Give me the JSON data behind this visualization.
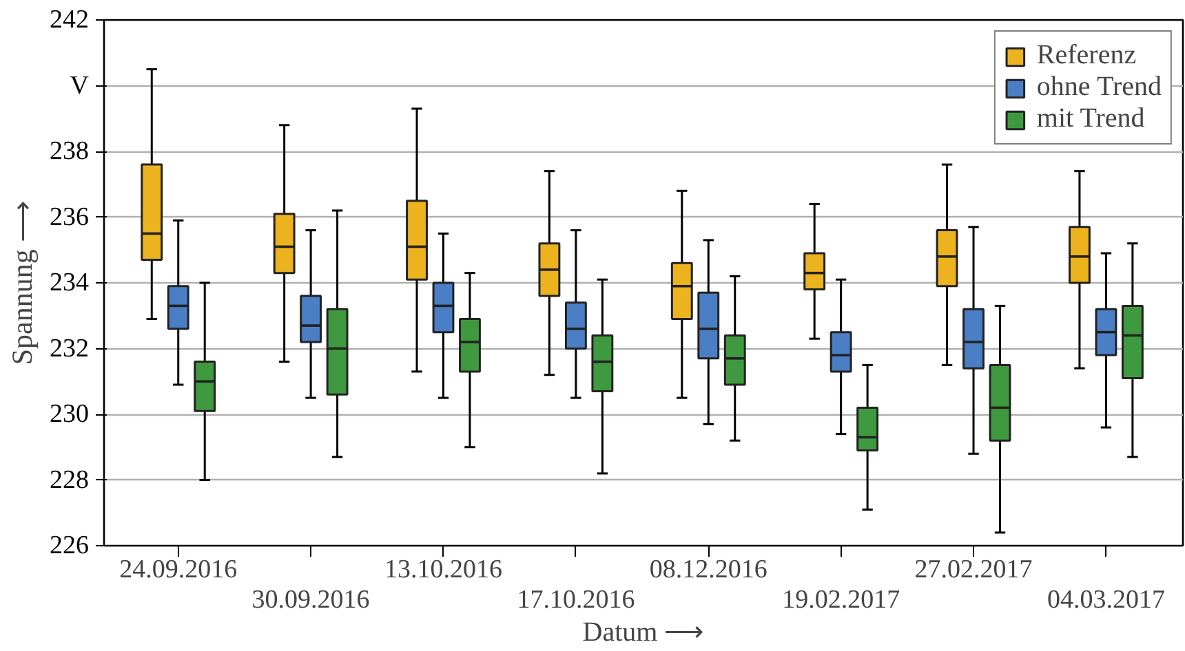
{
  "chart_data": {
    "type": "box",
    "xlabel": "Datum ⟶",
    "ylabel": "Spannung ⟶",
    "categories": [
      "24.09.2016",
      "30.09.2016",
      "13.10.2016",
      "17.10.2016",
      "08.12.2016",
      "19.02.2017",
      "27.02.2017",
      "04.03.2017"
    ],
    "ylim": [
      226,
      242
    ],
    "yticks": [
      226,
      228,
      230,
      232,
      234,
      236,
      238,
      {
        "value": 240,
        "label": "V"
      },
      242
    ],
    "grid": "y",
    "legend": "top right",
    "series": [
      {
        "name": "Referenz",
        "color": "#ecb31f",
        "boxes": [
          {
            "low": 232.9,
            "q1": 234.7,
            "median": 235.5,
            "q3": 237.6,
            "high": 240.5
          },
          {
            "low": 231.6,
            "q1": 234.3,
            "median": 235.1,
            "q3": 236.1,
            "high": 238.8
          },
          {
            "low": 231.3,
            "q1": 234.1,
            "median": 235.1,
            "q3": 236.5,
            "high": 239.3
          },
          {
            "low": 231.2,
            "q1": 233.6,
            "median": 234.4,
            "q3": 235.2,
            "high": 237.4
          },
          {
            "low": 230.5,
            "q1": 232.9,
            "median": 233.9,
            "q3": 234.6,
            "high": 236.8
          },
          {
            "low": 232.3,
            "q1": 233.8,
            "median": 234.3,
            "q3": 234.9,
            "high": 236.4
          },
          {
            "low": 231.5,
            "q1": 233.9,
            "median": 234.8,
            "q3": 235.6,
            "high": 237.6
          },
          {
            "low": 231.4,
            "q1": 234.0,
            "median": 234.8,
            "q3": 235.7,
            "high": 237.4
          }
        ]
      },
      {
        "name": "ohne Trend",
        "color": "#4a7fc6",
        "boxes": [
          {
            "low": 230.9,
            "q1": 232.6,
            "median": 233.3,
            "q3": 233.9,
            "high": 235.9
          },
          {
            "low": 230.5,
            "q1": 232.2,
            "median": 232.7,
            "q3": 233.6,
            "high": 235.6
          },
          {
            "low": 230.5,
            "q1": 232.5,
            "median": 233.3,
            "q3": 234.0,
            "high": 235.5
          },
          {
            "low": 230.5,
            "q1": 232.0,
            "median": 232.6,
            "q3": 233.4,
            "high": 235.6
          },
          {
            "low": 229.7,
            "q1": 231.7,
            "median": 232.6,
            "q3": 233.7,
            "high": 235.3
          },
          {
            "low": 229.4,
            "q1": 231.3,
            "median": 231.8,
            "q3": 232.5,
            "high": 234.1
          },
          {
            "low": 228.8,
            "q1": 231.4,
            "median": 232.2,
            "q3": 233.2,
            "high": 235.7
          },
          {
            "low": 229.6,
            "q1": 231.8,
            "median": 232.5,
            "q3": 233.2,
            "high": 234.9
          }
        ]
      },
      {
        "name": "mit Trend",
        "color": "#3f9a3f",
        "boxes": [
          {
            "low": 228.0,
            "q1": 230.1,
            "median": 231.0,
            "q3": 231.6,
            "high": 234.0
          },
          {
            "low": 228.7,
            "q1": 230.6,
            "median": 232.0,
            "q3": 233.2,
            "high": 236.2
          },
          {
            "low": 229.0,
            "q1": 231.3,
            "median": 232.2,
            "q3": 232.9,
            "high": 234.3
          },
          {
            "low": 228.2,
            "q1": 230.7,
            "median": 231.6,
            "q3": 232.4,
            "high": 234.1
          },
          {
            "low": 229.2,
            "q1": 230.9,
            "median": 231.7,
            "q3": 232.4,
            "high": 234.2
          },
          {
            "low": 227.1,
            "q1": 228.9,
            "median": 229.3,
            "q3": 230.2,
            "high": 231.5
          },
          {
            "low": 226.4,
            "q1": 229.2,
            "median": 230.2,
            "q3": 231.5,
            "high": 233.3
          },
          {
            "low": 228.7,
            "q1": 231.1,
            "median": 232.4,
            "q3": 233.3,
            "high": 235.2
          }
        ]
      }
    ]
  }
}
